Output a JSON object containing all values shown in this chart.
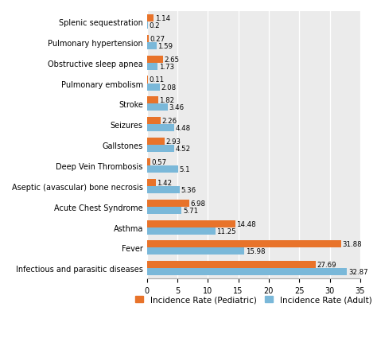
{
  "categories": [
    "Splenic sequestration",
    "Pulmonary hypertension",
    "Obstructive sleep apnea",
    "Pulmonary embolism",
    "Stroke",
    "Seizures",
    "Gallstones",
    "Deep Vein Thrombosis",
    "Aseptic (avascular) bone necrosis",
    "Acute Chest Syndrome",
    "Asthma",
    "Fever",
    "Infectious and parasitic diseases"
  ],
  "pediatric": [
    1.14,
    0.27,
    2.65,
    0.11,
    1.82,
    2.26,
    2.93,
    0.57,
    1.42,
    6.98,
    14.48,
    31.88,
    27.69
  ],
  "adult": [
    0.2,
    1.59,
    1.73,
    2.08,
    3.46,
    4.48,
    4.52,
    5.1,
    5.36,
    5.71,
    11.25,
    15.98,
    32.87
  ],
  "pediatric_color": "#E8732A",
  "adult_color": "#7AB8D9",
  "background_color": "#EBEBEB",
  "grid_color": "#FFFFFF",
  "xlim": [
    0,
    35
  ],
  "xticks": [
    0,
    5,
    10,
    15,
    20,
    25,
    30,
    35
  ],
  "legend_pediatric": "Incidence Rate (Pediatric)",
  "legend_adult": "Incidence Rate (Adult)",
  "bar_height": 0.35,
  "tick_fontsize": 7.0,
  "legend_fontsize": 7.5,
  "value_fontsize": 6.2
}
